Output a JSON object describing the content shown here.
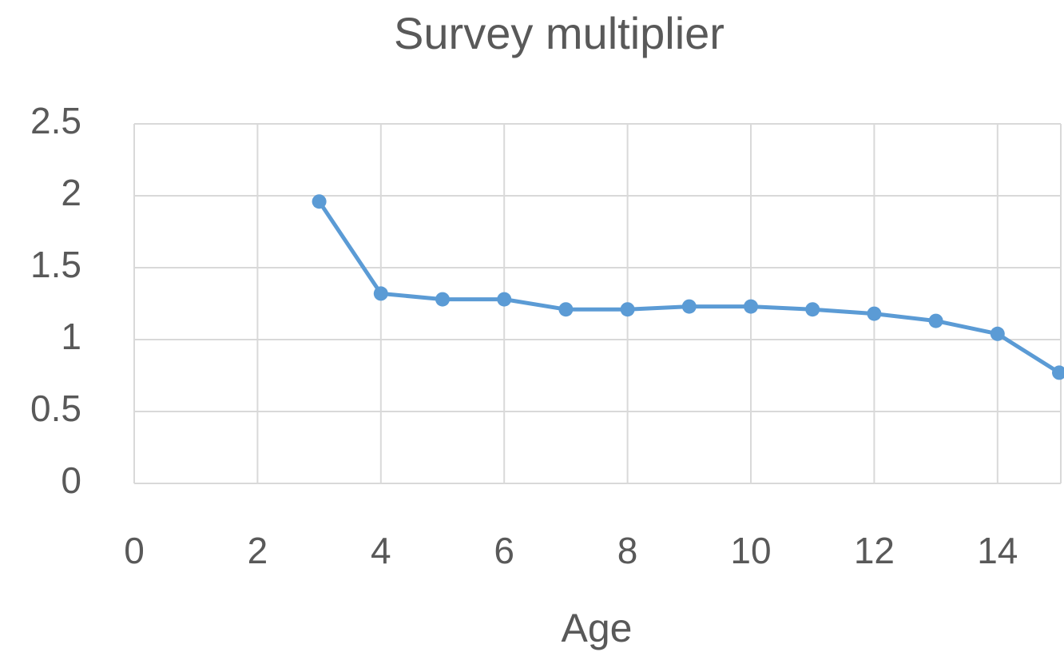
{
  "chart_data": {
    "type": "line",
    "title": "Survey multiplier",
    "x_label": "Age",
    "x": [
      3,
      4,
      5,
      6,
      7,
      8,
      9,
      10,
      11,
      12,
      13,
      14,
      15
    ],
    "series": [
      {
        "color": "#5b9bd5",
        "values": [
          1.96,
          1.32,
          1.28,
          1.28,
          1.21,
          1.21,
          1.23,
          1.23,
          1.21,
          1.18,
          1.13,
          1.04,
          0.77
        ]
      }
    ],
    "xlim": [
      0,
      15
    ],
    "xticks": [
      0,
      2,
      4,
      6,
      8,
      10,
      12,
      14
    ],
    "ylim": [
      0,
      2.5
    ],
    "yticks": [
      0,
      0.5,
      1,
      1.5,
      2,
      2.5
    ],
    "grid": true
  }
}
